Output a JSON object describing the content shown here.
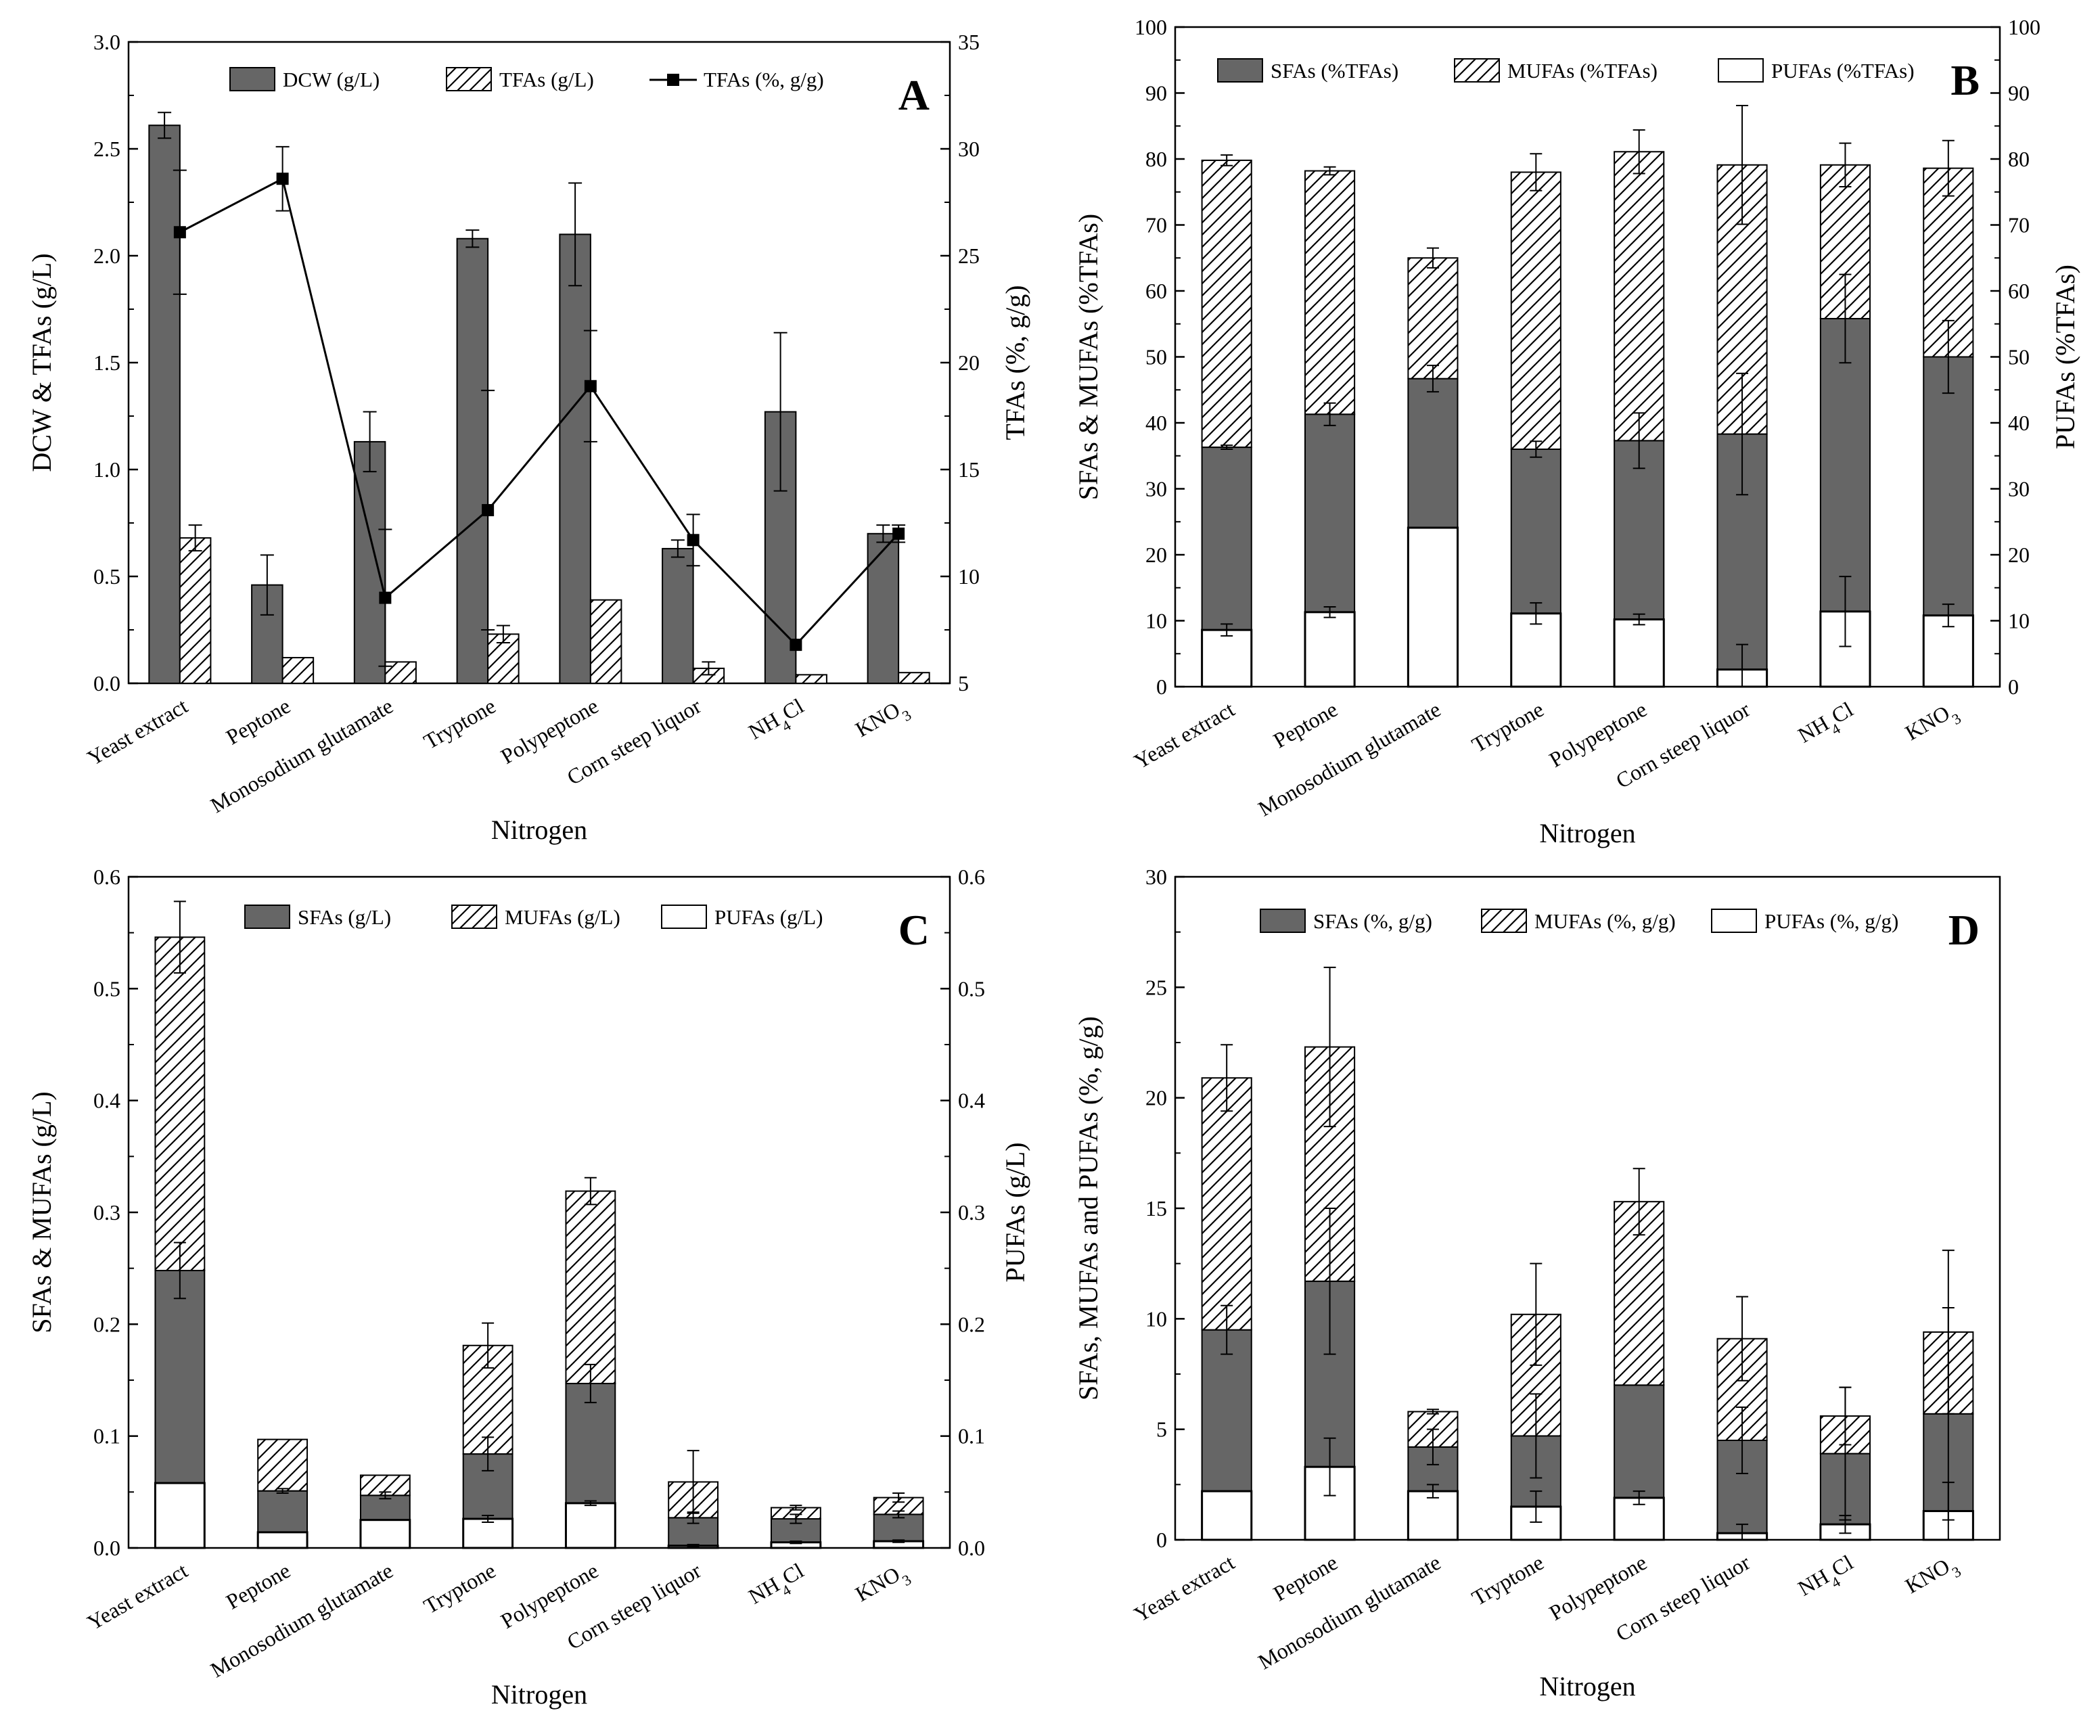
{
  "colors": {
    "sfa_fill": "#666666",
    "line": "#000000",
    "background": "#ffffff"
  },
  "chart_data": [
    {
      "panel": "A",
      "type": "bar",
      "categories": [
        "Yeast extract",
        "Peptone",
        "Monosodium glutamate",
        "Tryptone",
        "Polypeptone",
        "Corn steep liquor",
        "NH4Cl",
        "KNO3"
      ],
      "xlabel": "Nitrogen",
      "ylabel": "DCW & TFAs (g/L)",
      "y2label": "TFAs (%, g/g)",
      "ylim": [
        0,
        3.0
      ],
      "yticks": [
        "0.0",
        "0.5",
        "1.0",
        "1.5",
        "2.0",
        "2.5",
        "3.0"
      ],
      "y2lim": [
        5,
        35
      ],
      "y2ticks": [
        "5",
        "10",
        "15",
        "20",
        "25",
        "30",
        "35"
      ],
      "legend": [
        "DCW (g/L)",
        "TFAs (g/L)",
        "TFAs (%, g/g)"
      ],
      "series": [
        {
          "name": "DCW (g/L)",
          "kind": "bar",
          "fill": "solid",
          "values": [
            2.61,
            0.46,
            1.13,
            2.08,
            2.1,
            0.63,
            1.27,
            0.7
          ],
          "errors": [
            0.06,
            0.14,
            0.14,
            0.04,
            0.24,
            0.04,
            0.37,
            0.04
          ]
        },
        {
          "name": "TFAs (g/L)",
          "kind": "bar",
          "fill": "hatch",
          "values": [
            0.68,
            0.12,
            0.1,
            0.23,
            0.39,
            0.07,
            0.04,
            0.05
          ],
          "errors": [
            0.06,
            0.0,
            0.0,
            0.04,
            0.0,
            0.03,
            0.0,
            0.0
          ]
        },
        {
          "name": "TFAs (%, g/g)",
          "kind": "line",
          "axis": "right",
          "values": [
            26.1,
            28.6,
            9.0,
            13.1,
            18.9,
            11.7,
            6.8,
            12.0
          ],
          "errors": [
            2.9,
            1.5,
            3.2,
            5.6,
            2.6,
            1.2,
            0.0,
            0.4
          ]
        }
      ]
    },
    {
      "panel": "B",
      "type": "bar",
      "categories": [
        "Yeast extract",
        "Peptone",
        "Monosodium glutamate",
        "Tryptone",
        "Polypeptone",
        "Corn steep liquor",
        "NH4Cl",
        "KNO3"
      ],
      "xlabel": "Nitrogen",
      "ylabel": "SFAs & MUFAs (%TFAs)",
      "y2label": "PUFAs (%TFAs)",
      "ylim": [
        0,
        100
      ],
      "yticks": [
        "0",
        "10",
        "20",
        "30",
        "40",
        "50",
        "60",
        "70",
        "80",
        "90",
        "100"
      ],
      "y2lim": [
        0,
        100
      ],
      "y2ticks": [
        "0",
        "10",
        "20",
        "30",
        "40",
        "50",
        "60",
        "70",
        "80",
        "90",
        "100"
      ],
      "legend": [
        "SFAs (%TFAs)",
        "MUFAs (%TFAs)",
        "PUFAs (%TFAs)"
      ],
      "series": [
        {
          "name": "SFAs (%TFAs)",
          "kind": "stack",
          "fill": "solid",
          "values": [
            36.3,
            41.3,
            46.7,
            36.0,
            37.3,
            38.3,
            55.8,
            50.0
          ],
          "errors": [
            0.3,
            1.7,
            2.0,
            1.2,
            4.2,
            9.2,
            6.7,
            5.5
          ]
        },
        {
          "name": "MUFAs (%TFAs)",
          "kind": "stack",
          "fill": "hatch",
          "values": [
            43.5,
            36.9,
            18.3,
            42.0,
            43.8,
            40.8,
            23.3,
            28.6
          ],
          "errors": [
            0.8,
            0.6,
            1.5,
            2.8,
            3.3,
            9.0,
            3.3,
            4.2
          ]
        },
        {
          "name": "PUFAs (%TFAs)",
          "kind": "bar",
          "fill": "open",
          "axis": "right",
          "values": [
            8.6,
            11.3,
            24.1,
            11.1,
            10.2,
            2.6,
            11.4,
            10.8
          ],
          "errors": [
            0.9,
            0.8,
            0.0,
            1.6,
            0.8,
            3.8,
            5.3,
            1.7
          ]
        }
      ]
    },
    {
      "panel": "C",
      "type": "bar",
      "categories": [
        "Yeast extract",
        "Peptone",
        "Monosodium glutamate",
        "Tryptone",
        "Polypeptone",
        "Corn steep liquor",
        "NH4Cl",
        "KNO3"
      ],
      "xlabel": "Nitrogen",
      "ylabel": "SFAs & MUFAs (g/L)",
      "y2label": "PUFAs (g/L)",
      "ylim": [
        0,
        0.6
      ],
      "yticks": [
        "0.0",
        "0.1",
        "0.2",
        "0.3",
        "0.4",
        "0.5",
        "0.6"
      ],
      "y2lim": [
        0,
        0.6
      ],
      "y2ticks": [
        "0.0",
        "0.1",
        "0.2",
        "0.3",
        "0.4",
        "0.5",
        "0.6"
      ],
      "legend": [
        "SFAs (g/L)",
        "MUFAs (g/L)",
        "PUFAs (g/L)"
      ],
      "series": [
        {
          "name": "SFAs (g/L)",
          "kind": "stack",
          "fill": "solid",
          "values": [
            0.248,
            0.051,
            0.047,
            0.084,
            0.147,
            0.027,
            0.026,
            0.03
          ],
          "errors": [
            0.025,
            0.002,
            0.003,
            0.015,
            0.017,
            0.005,
            0.004,
            0.003
          ]
        },
        {
          "name": "MUFAs (g/L)",
          "kind": "stack",
          "fill": "hatch",
          "values": [
            0.298,
            0.046,
            0.018,
            0.097,
            0.172,
            0.032,
            0.01,
            0.015
          ],
          "errors": [
            0.032,
            0.0,
            0.0,
            0.02,
            0.012,
            0.028,
            0.002,
            0.004
          ]
        },
        {
          "name": "PUFAs (g/L)",
          "kind": "bar",
          "fill": "open",
          "axis": "right",
          "values": [
            0.058,
            0.014,
            0.025,
            0.026,
            0.04,
            0.002,
            0.005,
            0.006
          ],
          "errors": [
            0.0,
            0.0,
            0.0,
            0.003,
            0.002,
            0.001,
            0.001,
            0.001
          ]
        }
      ]
    },
    {
      "panel": "D",
      "type": "bar",
      "categories": [
        "Yeast extract",
        "Peptone",
        "Monosodium glutamate",
        "Tryptone",
        "Polypeptone",
        "Corn steep liquor",
        "NH4Cl",
        "KNO3"
      ],
      "xlabel": "Nitrogen",
      "ylabel": "SFAs, MUFAs and PUFAs (%, g/g)",
      "ylim": [
        0,
        30
      ],
      "yticks": [
        "0",
        "5",
        "10",
        "15",
        "20",
        "25",
        "30"
      ],
      "legend": [
        "SFAs (%, g/g)",
        "MUFAs (%, g/g)",
        "PUFAs (%, g/g)"
      ],
      "series": [
        {
          "name": "SFAs (%, g/g)",
          "kind": "stack",
          "fill": "solid",
          "values": [
            9.5,
            11.7,
            4.2,
            4.7,
            7.0,
            4.5,
            3.9,
            5.7
          ],
          "errors": [
            1.1,
            3.3,
            0.8,
            1.9,
            0.0,
            1.5,
            3.0,
            4.8
          ]
        },
        {
          "name": "MUFAs (%, g/g)",
          "kind": "stack",
          "fill": "hatch",
          "values": [
            11.4,
            10.6,
            1.6,
            5.5,
            8.3,
            4.6,
            1.7,
            3.7
          ],
          "errors": [
            1.5,
            3.6,
            0.1,
            2.3,
            1.5,
            1.9,
            1.3,
            3.7
          ]
        },
        {
          "name": "PUFAs (%, g/g)",
          "kind": "bar",
          "fill": "open",
          "values": [
            2.2,
            3.3,
            2.2,
            1.5,
            1.9,
            0.3,
            0.7,
            1.3
          ],
          "errors": [
            0.0,
            1.3,
            0.3,
            0.7,
            0.3,
            0.4,
            0.4,
            1.3
          ]
        }
      ]
    }
  ]
}
